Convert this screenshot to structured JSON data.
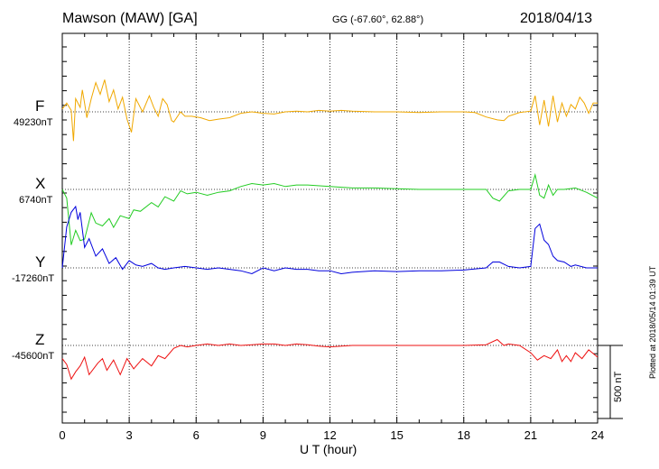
{
  "header": {
    "title": "Mawson (MAW)  [GA]",
    "coords": "GG (-67.60°,  62.88°)",
    "date": "2018/04/13"
  },
  "footer": {
    "plotted": "Plotted at 2018/05/14 01:39 UT",
    "scale": "500 nT"
  },
  "chart_data": {
    "type": "line",
    "title": "Mawson (MAW)  [GA]",
    "xlabel": "U T (hour)",
    "ylabel": "",
    "xlim": [
      0,
      24
    ],
    "x_ticks": [
      "0",
      "3",
      "6",
      "9",
      "12",
      "15",
      "18",
      "21",
      "24"
    ],
    "scale_bar_nT": 500,
    "grid": "dotted vertical every 3 h",
    "series": [
      {
        "name": "F",
        "baseline_label": "49230nT",
        "color": "#f0a800",
        "points": [
          [
            0,
            20
          ],
          [
            0.2,
            60
          ],
          [
            0.4,
            10
          ],
          [
            0.5,
            -200
          ],
          [
            0.6,
            90
          ],
          [
            0.8,
            30
          ],
          [
            0.9,
            150
          ],
          [
            1.0,
            60
          ],
          [
            1.1,
            -40
          ],
          [
            1.3,
            90
          ],
          [
            1.5,
            200
          ],
          [
            1.7,
            120
          ],
          [
            1.9,
            220
          ],
          [
            2.1,
            70
          ],
          [
            2.3,
            150
          ],
          [
            2.5,
            20
          ],
          [
            2.7,
            100
          ],
          [
            2.9,
            -50
          ],
          [
            3.1,
            -140
          ],
          [
            3.3,
            90
          ],
          [
            3.6,
            0
          ],
          [
            3.9,
            110
          ],
          [
            4.1,
            30
          ],
          [
            4.3,
            -30
          ],
          [
            4.5,
            90
          ],
          [
            4.7,
            50
          ],
          [
            4.9,
            -60
          ],
          [
            5.0,
            -70
          ],
          [
            5.3,
            0
          ],
          [
            5.5,
            -30
          ],
          [
            5.8,
            -30
          ],
          [
            6.2,
            -40
          ],
          [
            6.6,
            -60
          ],
          [
            7.0,
            -50
          ],
          [
            7.5,
            -40
          ],
          [
            8.0,
            -10
          ],
          [
            8.5,
            0
          ],
          [
            9.0,
            -10
          ],
          [
            9.5,
            -15
          ],
          [
            10.0,
            0
          ],
          [
            10.5,
            5
          ],
          [
            11.0,
            0
          ],
          [
            11.5,
            10
          ],
          [
            12.0,
            5
          ],
          [
            12.5,
            10
          ],
          [
            13.0,
            5
          ],
          [
            14.0,
            0
          ],
          [
            15.0,
            0
          ],
          [
            16.0,
            -5
          ],
          [
            17.0,
            0
          ],
          [
            18.0,
            0
          ],
          [
            18.5,
            -5
          ],
          [
            19.0,
            -35
          ],
          [
            19.5,
            -55
          ],
          [
            19.8,
            -60
          ],
          [
            20.0,
            -30
          ],
          [
            20.5,
            -5
          ],
          [
            21.0,
            5
          ],
          [
            21.2,
            110
          ],
          [
            21.4,
            -90
          ],
          [
            21.6,
            80
          ],
          [
            21.8,
            -100
          ],
          [
            22.0,
            110
          ],
          [
            22.2,
            -70
          ],
          [
            22.4,
            60
          ],
          [
            22.6,
            -30
          ],
          [
            22.8,
            50
          ],
          [
            23.0,
            20
          ],
          [
            23.2,
            100
          ],
          [
            23.4,
            60
          ],
          [
            23.6,
            -10
          ],
          [
            23.8,
            60
          ],
          [
            24.0,
            60
          ]
        ]
      },
      {
        "name": "X",
        "baseline_label": "6740nT",
        "color": "#22cc22",
        "points": [
          [
            0,
            0
          ],
          [
            0.2,
            -60
          ],
          [
            0.4,
            -380
          ],
          [
            0.6,
            -280
          ],
          [
            0.8,
            -350
          ],
          [
            1.0,
            -340
          ],
          [
            1.3,
            -160
          ],
          [
            1.5,
            -230
          ],
          [
            1.8,
            -250
          ],
          [
            2.1,
            -200
          ],
          [
            2.3,
            -260
          ],
          [
            2.6,
            -180
          ],
          [
            3.0,
            -200
          ],
          [
            3.2,
            -140
          ],
          [
            3.5,
            -150
          ],
          [
            4.0,
            -90
          ],
          [
            4.3,
            -120
          ],
          [
            4.6,
            -50
          ],
          [
            5.0,
            -80
          ],
          [
            5.3,
            -10
          ],
          [
            5.6,
            -30
          ],
          [
            6.0,
            -20
          ],
          [
            6.5,
            -40
          ],
          [
            7.0,
            -20
          ],
          [
            7.5,
            -10
          ],
          [
            8.0,
            20
          ],
          [
            8.5,
            40
          ],
          [
            9.0,
            30
          ],
          [
            9.5,
            40
          ],
          [
            10.0,
            20
          ],
          [
            10.5,
            30
          ],
          [
            11.0,
            30
          ],
          [
            12.0,
            20
          ],
          [
            13.0,
            10
          ],
          [
            14.0,
            10
          ],
          [
            15.0,
            5
          ],
          [
            16.0,
            0
          ],
          [
            17.0,
            0
          ],
          [
            18.0,
            0
          ],
          [
            19.0,
            0
          ],
          [
            19.3,
            -60
          ],
          [
            19.6,
            -80
          ],
          [
            20.0,
            -10
          ],
          [
            20.5,
            0
          ],
          [
            21.0,
            0
          ],
          [
            21.2,
            100
          ],
          [
            21.4,
            -40
          ],
          [
            21.6,
            -60
          ],
          [
            21.8,
            30
          ],
          [
            22.0,
            -40
          ],
          [
            22.2,
            0
          ],
          [
            22.5,
            0
          ],
          [
            23.0,
            10
          ],
          [
            23.5,
            -20
          ],
          [
            24.0,
            -60
          ]
        ]
      },
      {
        "name": "Y",
        "baseline_label": "-17260nT",
        "color": "#0000dd",
        "points": [
          [
            0,
            0
          ],
          [
            0.2,
            280
          ],
          [
            0.4,
            380
          ],
          [
            0.6,
            420
          ],
          [
            0.7,
            330
          ],
          [
            0.8,
            380
          ],
          [
            1.0,
            140
          ],
          [
            1.2,
            200
          ],
          [
            1.5,
            80
          ],
          [
            1.8,
            130
          ],
          [
            2.1,
            30
          ],
          [
            2.4,
            70
          ],
          [
            2.7,
            -10
          ],
          [
            3.0,
            50
          ],
          [
            3.3,
            20
          ],
          [
            3.6,
            10
          ],
          [
            4.0,
            30
          ],
          [
            4.3,
            0
          ],
          [
            4.6,
            -10
          ],
          [
            5.0,
            0
          ],
          [
            5.5,
            10
          ],
          [
            6.0,
            0
          ],
          [
            6.5,
            -10
          ],
          [
            7.0,
            0
          ],
          [
            7.5,
            -10
          ],
          [
            8.0,
            -20
          ],
          [
            8.5,
            -40
          ],
          [
            9.0,
            0
          ],
          [
            9.5,
            -20
          ],
          [
            10.0,
            0
          ],
          [
            10.5,
            -10
          ],
          [
            11.0,
            -10
          ],
          [
            11.5,
            -20
          ],
          [
            12.0,
            -20
          ],
          [
            12.5,
            -40
          ],
          [
            13.0,
            -30
          ],
          [
            14.0,
            -20
          ],
          [
            15.0,
            -25
          ],
          [
            16.0,
            -20
          ],
          [
            17.0,
            -20
          ],
          [
            18.0,
            -15
          ],
          [
            19.0,
            0
          ],
          [
            19.3,
            40
          ],
          [
            19.6,
            40
          ],
          [
            20.0,
            10
          ],
          [
            20.5,
            0
          ],
          [
            21.0,
            10
          ],
          [
            21.2,
            270
          ],
          [
            21.4,
            300
          ],
          [
            21.6,
            190
          ],
          [
            21.8,
            160
          ],
          [
            22.0,
            80
          ],
          [
            22.2,
            50
          ],
          [
            22.5,
            40
          ],
          [
            22.8,
            10
          ],
          [
            23.0,
            20
          ],
          [
            23.5,
            0
          ],
          [
            24.0,
            0
          ]
        ]
      },
      {
        "name": "Z",
        "baseline_label": "-45600nT",
        "color": "#ee1111",
        "points": [
          [
            0,
            -90
          ],
          [
            0.2,
            -130
          ],
          [
            0.4,
            -230
          ],
          [
            0.6,
            -180
          ],
          [
            0.8,
            -140
          ],
          [
            1.0,
            -80
          ],
          [
            1.2,
            -200
          ],
          [
            1.4,
            -160
          ],
          [
            1.6,
            -120
          ],
          [
            1.8,
            -90
          ],
          [
            2.0,
            -170
          ],
          [
            2.3,
            -100
          ],
          [
            2.6,
            -200
          ],
          [
            2.9,
            -90
          ],
          [
            3.2,
            -160
          ],
          [
            3.6,
            -90
          ],
          [
            4.0,
            -140
          ],
          [
            4.3,
            -70
          ],
          [
            4.6,
            -90
          ],
          [
            5.0,
            -20
          ],
          [
            5.3,
            0
          ],
          [
            5.6,
            -10
          ],
          [
            6.0,
            0
          ],
          [
            6.5,
            10
          ],
          [
            7.0,
            0
          ],
          [
            7.5,
            10
          ],
          [
            8.0,
            0
          ],
          [
            8.5,
            5
          ],
          [
            9.0,
            10
          ],
          [
            9.5,
            10
          ],
          [
            10.0,
            0
          ],
          [
            10.5,
            10
          ],
          [
            11.0,
            5
          ],
          [
            11.5,
            -5
          ],
          [
            12.0,
            -10
          ],
          [
            13.0,
            0
          ],
          [
            14.0,
            0
          ],
          [
            15.0,
            0
          ],
          [
            16.0,
            0
          ],
          [
            17.0,
            0
          ],
          [
            18.0,
            0
          ],
          [
            19.0,
            5
          ],
          [
            19.5,
            40
          ],
          [
            19.8,
            0
          ],
          [
            20.0,
            10
          ],
          [
            20.5,
            0
          ],
          [
            21.0,
            -50
          ],
          [
            21.3,
            -100
          ],
          [
            21.6,
            -70
          ],
          [
            21.9,
            -90
          ],
          [
            22.2,
            -30
          ],
          [
            22.4,
            -110
          ],
          [
            22.6,
            -70
          ],
          [
            22.8,
            -110
          ],
          [
            23.0,
            -50
          ],
          [
            23.3,
            -90
          ],
          [
            23.6,
            -30
          ],
          [
            24.0,
            -80
          ]
        ]
      }
    ]
  }
}
